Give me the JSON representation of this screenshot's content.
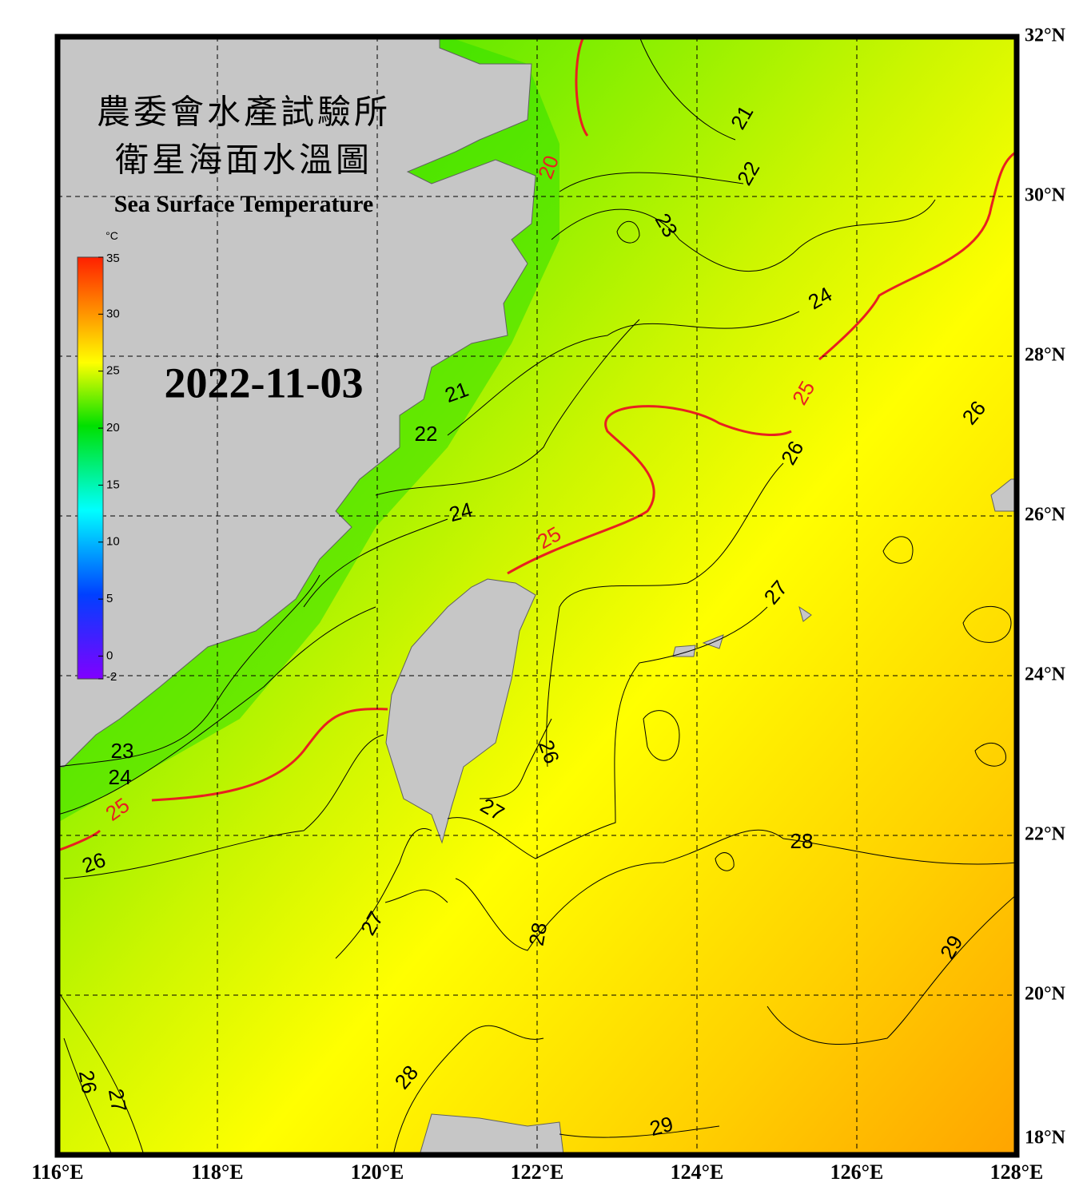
{
  "header": {
    "title_zh_1": "農委會水產試驗所",
    "title_zh_2": "衛星海面水溫圖",
    "title_en": "Sea Surface Temperature",
    "date": "2022-11-03"
  },
  "colorbar": {
    "unit": "°C",
    "range": [
      -2,
      35
    ],
    "ticks": [
      -2,
      0,
      5,
      10,
      15,
      20,
      25,
      30,
      35
    ]
  },
  "map": {
    "lonlim": [
      116,
      128
    ],
    "latlim": [
      18,
      32
    ],
    "lon_ticks": [
      {
        "value": 116,
        "label": "116°E"
      },
      {
        "value": 118,
        "label": "118°E"
      },
      {
        "value": 120,
        "label": "120°E"
      },
      {
        "value": 122,
        "label": "122°E"
      },
      {
        "value": 124,
        "label": "124°E"
      },
      {
        "value": 126,
        "label": "126°E"
      },
      {
        "value": 128,
        "label": "128°E"
      }
    ],
    "lat_ticks": [
      {
        "value": 18,
        "label": "18°N"
      },
      {
        "value": 20,
        "label": "20°N"
      },
      {
        "value": 22,
        "label": "22°N"
      },
      {
        "value": 24,
        "label": "24°N"
      },
      {
        "value": 26,
        "label": "26°N"
      },
      {
        "value": 28,
        "label": "28°N"
      },
      {
        "value": 30,
        "label": "30°N"
      },
      {
        "value": 32,
        "label": "32°N"
      }
    ]
  },
  "contour_labels": [
    21,
    22,
    23,
    24,
    20,
    25,
    26,
    26,
    21,
    22,
    24,
    25,
    27,
    23,
    24,
    25,
    26,
    27,
    28,
    26,
    27,
    28,
    29,
    28,
    26,
    27,
    29
  ]
}
